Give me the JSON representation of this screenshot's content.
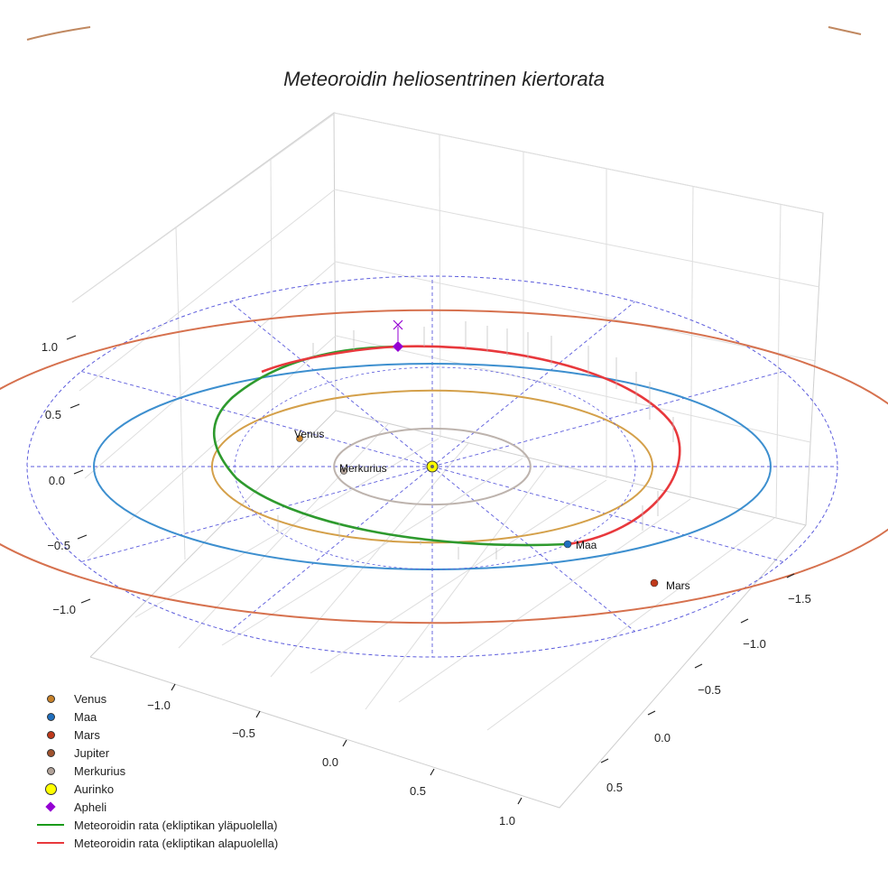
{
  "chart_data": {
    "type": "line",
    "title": "Meteoroidin heliosentrinen kiertorata",
    "axes": {
      "x_ticks": [
        "−1.0",
        "−0.5",
        "0.0",
        "0.5",
        "1.0"
      ],
      "y_ticks": [
        "−1.5",
        "−1.0",
        "−0.5",
        "0.0",
        "0.5"
      ],
      "z_ticks": [
        "1.0",
        "0.5",
        "0.0",
        "−0.5",
        "−1.0"
      ],
      "grid": true
    },
    "planet_orbits": [
      {
        "name": "Merkurius",
        "radius_au": 0.39,
        "color": "#bdb3ad"
      },
      {
        "name": "Venus",
        "radius_au": 0.72,
        "color": "#d4a04a"
      },
      {
        "name": "Maa",
        "radius_au": 1.0,
        "color": "#3d8fcf"
      },
      {
        "name": "Mars",
        "radius_au": 1.52,
        "color": "#d6714e"
      }
    ],
    "planet_labels": [
      {
        "name": "Venus",
        "text": "Venus",
        "color": "#c8822a"
      },
      {
        "name": "Merkurius",
        "text": "Merkurius",
        "color": "#b2a39a"
      },
      {
        "name": "Maa",
        "text": "Maa",
        "color": "#1f6fbf"
      },
      {
        "name": "Mars",
        "text": "Mars",
        "color": "#c0391b"
      }
    ],
    "series": [
      {
        "name": "Meteoroidin rata (ekliptikan yläpuolella)",
        "color": "#2e9a2e"
      },
      {
        "name": "Meteoroidin rata (ekliptikan alapuolella)",
        "color": "#e8383c"
      }
    ],
    "legend": {
      "position": "bottom-left",
      "items": [
        {
          "label": "Venus",
          "symbol": "dot",
          "color": "#c8822a"
        },
        {
          "label": "Maa",
          "symbol": "dot",
          "color": "#1f6fbf"
        },
        {
          "label": "Mars",
          "symbol": "dot",
          "color": "#c0391b"
        },
        {
          "label": "Jupiter",
          "symbol": "dot",
          "color": "#a0522d"
        },
        {
          "label": "Merkurius",
          "symbol": "dot",
          "color": "#b2a39a"
        },
        {
          "label": "Aurinko",
          "symbol": "dot-big",
          "color": "#ffff00"
        },
        {
          "label": "Apheli",
          "symbol": "diamond",
          "color": "#9400d3"
        },
        {
          "label": "Meteoroidin rata (ekliptikan yläpuolella)",
          "symbol": "line",
          "color": "#1a9a1a"
        },
        {
          "label": "Meteoroidin rata (ekliptikan alapuolella)",
          "symbol": "line",
          "color": "#e8383c"
        }
      ]
    }
  }
}
